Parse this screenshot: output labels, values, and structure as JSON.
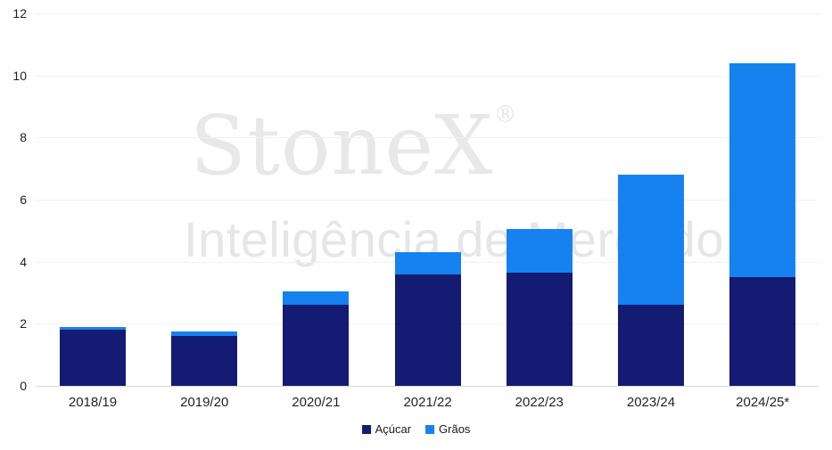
{
  "chart_data": {
    "type": "bar",
    "stacked": true,
    "title": "",
    "xlabel": "",
    "ylabel": "",
    "categories": [
      "2018/19",
      "2019/20",
      "2020/21",
      "2021/22",
      "2022/23",
      "2023/24",
      "2024/25*"
    ],
    "series": [
      {
        "name": "Açúcar",
        "color": "#141b72",
        "values": [
          1.8,
          1.6,
          2.6,
          3.6,
          3.65,
          2.6,
          3.5
        ]
      },
      {
        "name": "Grãos",
        "color": "#1682f0",
        "values": [
          0.1,
          0.15,
          0.45,
          0.7,
          1.4,
          4.2,
          6.9
        ]
      }
    ],
    "totals": [
      1.9,
      1.75,
      3.05,
      4.3,
      5.05,
      6.8,
      10.4
    ],
    "ylim": [
      0,
      12
    ],
    "yticks": [
      0,
      2,
      4,
      6,
      8,
      10,
      12
    ],
    "grid": "horizontal",
    "legend_position": "bottom-center"
  },
  "watermark": {
    "brand": "StoneX",
    "registered": "®",
    "tagline": "Inteligência de Mercado"
  },
  "colors": {
    "acucar": "#141b72",
    "graos": "#1682f0",
    "gridline": "#f1f1f2",
    "baseline": "#d8d8da",
    "axis_text": "#1f1f1f",
    "watermark": "#e8e8ea",
    "background": "#ffffff"
  }
}
